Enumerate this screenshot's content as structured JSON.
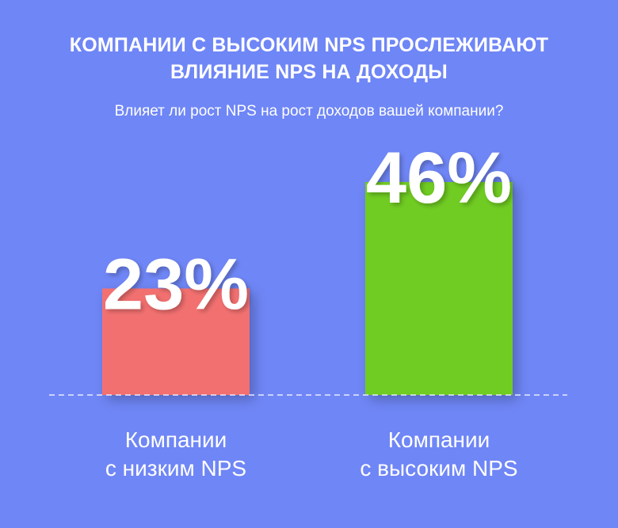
{
  "title_line1": "КОМПАНИИ С ВЫСОКИМ NPS ПРОСЛЕЖИВАЮТ",
  "title_line2": "ВЛИЯНИЕ NPS НА ДОХОДЫ",
  "subtitle": "Влияет ли рост NPS на рост доходов вашей компании?",
  "colors": {
    "background": "#6f86f6",
    "bar_low": "#f36f6f",
    "bar_high": "#6fcc24",
    "baseline": "#e8ecff"
  },
  "chart_data": {
    "type": "bar",
    "title": "КОМПАНИИ С ВЫСОКИМ NPS ПРОСЛЕЖИВАЮТ ВЛИЯНИЕ NPS НА ДОХОДЫ",
    "subtitle": "Влияет ли рост NPS на рост доходов вашей компании?",
    "categories": [
      {
        "line1": "Компании",
        "line2": "с низким NPS"
      },
      {
        "line1": "Компании",
        "line2": "с высоким NPS"
      }
    ],
    "values": [
      23,
      46
    ],
    "data_labels": [
      "23%",
      "46%"
    ],
    "value_suffix": "%",
    "xlabel": "",
    "ylabel": "",
    "grid": false,
    "legend": "none"
  }
}
